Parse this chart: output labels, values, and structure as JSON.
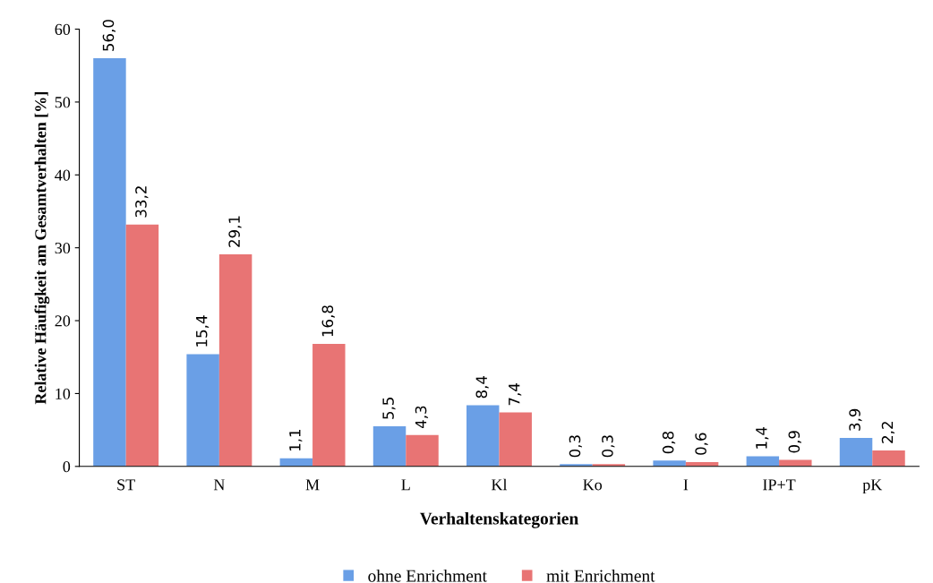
{
  "chart_data": {
    "type": "bar",
    "xlabel": "Verhaltenskategorien",
    "ylabel": "Relative Häufigkeit am Gesamtverhalten [%]",
    "categories": [
      "ST",
      "N",
      "M",
      "L",
      "Kl",
      "Ko",
      "I",
      "IP+T",
      "pK"
    ],
    "series": [
      {
        "name": "ohne Enrichment",
        "color": "#6a9fe6",
        "values": [
          56.0,
          15.4,
          1.1,
          5.5,
          8.4,
          0.3,
          0.8,
          1.4,
          3.9
        ],
        "value_labels": [
          "56,0",
          "15,4",
          "1,1",
          "5,5",
          "8,4",
          "0,3",
          "0,8",
          "1,4",
          "3,9"
        ]
      },
      {
        "name": "mit Enrichment",
        "color": "#e87474",
        "values": [
          33.2,
          29.1,
          16.8,
          4.3,
          7.4,
          0.3,
          0.6,
          0.9,
          2.2
        ],
        "value_labels": [
          "33,2",
          "29,1",
          "16,8",
          "4,3",
          "7,4",
          "0,3",
          "0,6",
          "0,9",
          "2,2"
        ]
      }
    ],
    "ylim": [
      0,
      60
    ],
    "yticks": [
      0,
      10,
      20,
      30,
      40,
      50,
      60
    ],
    "grid": false,
    "legend": "bottom"
  }
}
